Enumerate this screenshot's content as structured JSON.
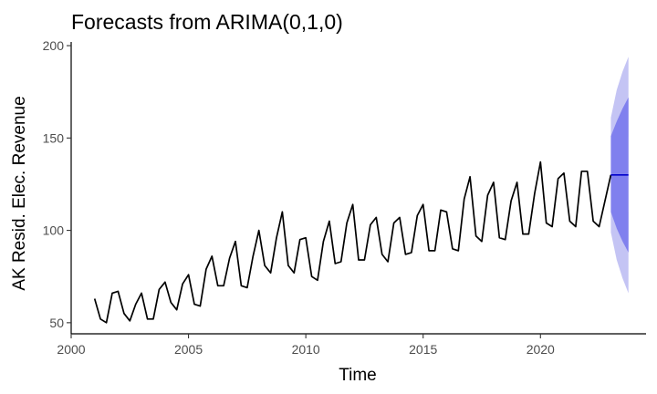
{
  "chart_data": {
    "type": "line",
    "title": "Forecasts from ARIMA(0,1,0)",
    "xlabel": "Time",
    "ylabel": "AK Resid. Elec. Revenue",
    "xlim": [
      2000,
      2024.5
    ],
    "ylim": [
      44,
      202
    ],
    "x_ticks": [
      2000,
      2005,
      2010,
      2015,
      2020
    ],
    "x_tick_labels": [
      "2000",
      "2005",
      "2010",
      "2015",
      "2020"
    ],
    "y_ticks": [
      50,
      100,
      150,
      200
    ],
    "y_tick_labels": [
      "50",
      "100",
      "150",
      "200"
    ],
    "grid": false,
    "colors": {
      "history": "#000000",
      "forecast_mean": "#0000cc",
      "band_80": "#8080ee",
      "band_95": "#c4c4f4"
    },
    "history": {
      "x": [
        2001.0,
        2001.25,
        2001.5,
        2001.75,
        2002.0,
        2002.25,
        2002.5,
        2002.75,
        2003.0,
        2003.25,
        2003.5,
        2003.75,
        2004.0,
        2004.25,
        2004.5,
        2004.75,
        2005.0,
        2005.25,
        2005.5,
        2005.75,
        2006.0,
        2006.25,
        2006.5,
        2006.75,
        2007.0,
        2007.25,
        2007.5,
        2007.75,
        2008.0,
        2008.25,
        2008.5,
        2008.75,
        2009.0,
        2009.25,
        2009.5,
        2009.75,
        2010.0,
        2010.25,
        2010.5,
        2010.75,
        2011.0,
        2011.25,
        2011.5,
        2011.75,
        2012.0,
        2012.25,
        2012.5,
        2012.75,
        2013.0,
        2013.25,
        2013.5,
        2013.75,
        2014.0,
        2014.25,
        2014.5,
        2014.75,
        2015.0,
        2015.25,
        2015.5,
        2015.75,
        2016.0,
        2016.25,
        2016.5,
        2016.75,
        2017.0,
        2017.25,
        2017.5,
        2017.75,
        2018.0,
        2018.25,
        2018.5,
        2018.75,
        2019.0,
        2019.25,
        2019.5,
        2019.75,
        2020.0,
        2020.25,
        2020.5,
        2020.75,
        2021.0,
        2021.25,
        2021.5,
        2021.75,
        2022.0,
        2022.25,
        2022.5,
        2022.75,
        2023.0
      ],
      "y": [
        63,
        52,
        50,
        66,
        67,
        55,
        51,
        60,
        66,
        52,
        52,
        68,
        72,
        61,
        57,
        71,
        76,
        60,
        59,
        79,
        86,
        70,
        70,
        85,
        94,
        70,
        69,
        86,
        100,
        81,
        77,
        96,
        110,
        81,
        77,
        95,
        96,
        75,
        73,
        94,
        105,
        82,
        83,
        104,
        114,
        84,
        84,
        103,
        107,
        87,
        83,
        104,
        107,
        87,
        88,
        108,
        114,
        89,
        89,
        111,
        110,
        90,
        89,
        117,
        129,
        97,
        94,
        119,
        126,
        96,
        95,
        116,
        126,
        98,
        98,
        120,
        137,
        104,
        102,
        128,
        131,
        105,
        102,
        132,
        132,
        105,
        102,
        116,
        130
      ]
    },
    "forecast": {
      "x": [
        2023.0,
        2023.25,
        2023.5,
        2023.75
      ],
      "mean": [
        130,
        130,
        130,
        130
      ],
      "lower80": [
        110,
        101,
        94,
        88
      ],
      "upper80": [
        151,
        159,
        166,
        172
      ],
      "lower95": [
        99,
        84,
        74,
        66
      ],
      "upper95": [
        161,
        176,
        186,
        194
      ]
    }
  }
}
